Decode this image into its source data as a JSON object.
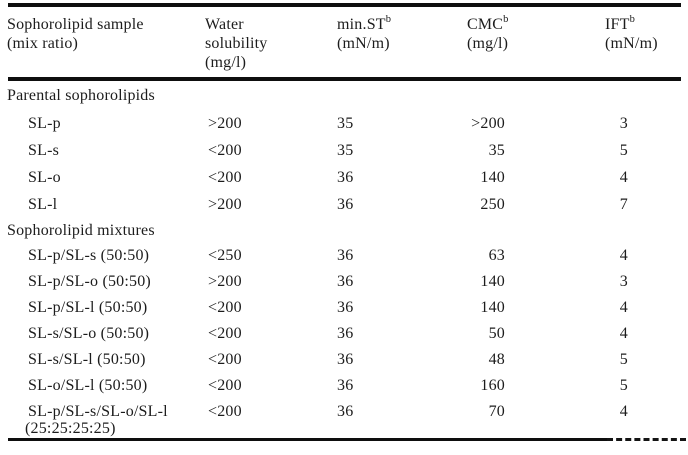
{
  "table": {
    "header": {
      "c1": {
        "line1": "Sophorolipid sample",
        "line2": "(mix ratio)"
      },
      "c2": {
        "line1": "Water",
        "line2": "solubility",
        "line3": "(mg/l)"
      },
      "c3": {
        "label": "min.ST",
        "sup": "b",
        "unit": "(mN/m)"
      },
      "c4": {
        "label": "CMC",
        "sup": "b",
        "unit": "(mg/l)"
      },
      "c5": {
        "label": "IFT",
        "sup": "b",
        "unit": "(mN/m)"
      }
    },
    "sections": [
      {
        "title": "Parental sophorolipids",
        "rows": [
          {
            "sample": "SL-p",
            "water_solubility": ">200",
            "min_st": "35",
            "cmc": ">200",
            "ift": "3"
          },
          {
            "sample": "SL-s",
            "water_solubility": "<200",
            "min_st": "35",
            "cmc": "35",
            "ift": "5"
          },
          {
            "sample": "SL-o",
            "water_solubility": "<200",
            "min_st": "36",
            "cmc": "140",
            "ift": "4"
          },
          {
            "sample": "SL-l",
            "water_solubility": ">200",
            "min_st": "36",
            "cmc": "250",
            "ift": "7"
          }
        ]
      },
      {
        "title": "Sophorolipid mixtures",
        "rows": [
          {
            "sample": "SL-p/SL-s (50:50)",
            "water_solubility": "<250",
            "min_st": "36",
            "cmc": "63",
            "ift": "4"
          },
          {
            "sample": "SL-p/SL-o (50:50)",
            "water_solubility": ">200",
            "min_st": "36",
            "cmc": "140",
            "ift": "3"
          },
          {
            "sample": "SL-p/SL-l (50:50)",
            "water_solubility": "<200",
            "min_st": "36",
            "cmc": "140",
            "ift": "4"
          },
          {
            "sample": "SL-s/SL-o (50:50)",
            "water_solubility": "<200",
            "min_st": "36",
            "cmc": "50",
            "ift": "4"
          },
          {
            "sample": "SL-s/SL-l (50:50)",
            "water_solubility": "<200",
            "min_st": "36",
            "cmc": "48",
            "ift": "5"
          },
          {
            "sample": "SL-o/SL-l (50:50)",
            "water_solubility": "<200",
            "min_st": "36",
            "cmc": "160",
            "ift": "5"
          },
          {
            "sample": "SL-p/SL-s/SL-o/SL-l",
            "sample_line2": "(25:25:25:25)",
            "water_solubility": "<200",
            "min_st": "36",
            "cmc": "70",
            "ift": "4"
          }
        ]
      }
    ],
    "colors": {
      "text": "#1c1c1c",
      "rule": "#0e0e0e",
      "background": "#ffffff"
    }
  }
}
